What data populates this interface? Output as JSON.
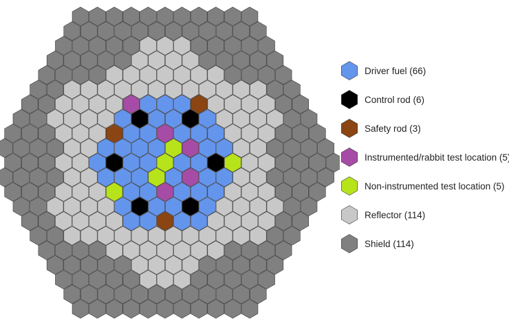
{
  "legend": [
    {
      "key": "driver",
      "label": "Driver fuel (66)",
      "color": "#6495ED"
    },
    {
      "key": "control",
      "label": "Control rod (6)",
      "color": "#000000"
    },
    {
      "key": "safety",
      "label": "Safety rod (3)",
      "color": "#8B4513"
    },
    {
      "key": "instrumented",
      "label": "Instrumented/rabbit test location (5)",
      "color": "#A64CA6"
    },
    {
      "key": "noninstrumented",
      "label": "Non-instrumented test location (5)",
      "color": "#B7E31A"
    },
    {
      "key": "reflector",
      "label": "Reflector (114)",
      "color": "#C8C8C8"
    },
    {
      "key": "shield",
      "label": "Shield (114)",
      "color": "#808080"
    }
  ],
  "core": {
    "rings": 10,
    "inner_assemblies": [
      {
        "ring": 0,
        "pos": 0,
        "type": "noninstrumented"
      },
      {
        "ring": 1,
        "pos": 0,
        "type": "noninstrumented"
      },
      {
        "ring": 1,
        "pos": 3,
        "type": "noninstrumented"
      },
      {
        "ring": 2,
        "pos": 1,
        "type": "instrumented"
      },
      {
        "ring": 2,
        "pos": 3,
        "type": "instrumented"
      },
      {
        "ring": 2,
        "pos": 5,
        "type": "instrumented"
      },
      {
        "ring": 2,
        "pos": 7,
        "type": "instrumented"
      },
      {
        "ring": 3,
        "pos": 0,
        "type": "control"
      },
      {
        "ring": 3,
        "pos": 3,
        "type": "control"
      },
      {
        "ring": 3,
        "pos": 6,
        "type": "control"
      },
      {
        "ring": 3,
        "pos": 9,
        "type": "control"
      },
      {
        "ring": 3,
        "pos": 12,
        "type": "control"
      },
      {
        "ring": 3,
        "pos": 15,
        "type": "control"
      },
      {
        "ring": 4,
        "pos": 2,
        "type": "safety"
      },
      {
        "ring": 4,
        "pos": 12,
        "type": "safety"
      },
      {
        "ring": 4,
        "pos": 16,
        "type": "instrumented"
      },
      {
        "ring": 4,
        "pos": 18,
        "type": "safety"
      },
      {
        "ring": 4,
        "pos": 22,
        "type": "noninstrumented"
      },
      {
        "ring": 4,
        "pos": 8,
        "type": "noninstrumented"
      }
    ],
    "ring_types": {
      "fuel_max_ring": 4,
      "reflector_rings": [
        5,
        6
      ],
      "shield_rings": [
        9
      ],
      "transition": [
        {
          "ring": 7,
          "reflector_positions": "sides"
        },
        {
          "ring": 8,
          "reflector_positions": "none"
        }
      ]
    }
  }
}
